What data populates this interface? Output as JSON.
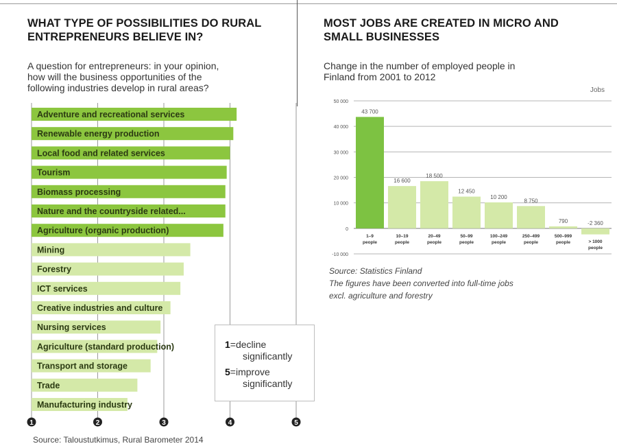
{
  "left": {
    "title_line1": "WHAT TYPE OF POSSIBILITIES DO RURAL",
    "title_line2": "ENTREPRENEURS BELIEVE IN?",
    "subtitle_line1": "A question for entrepreneurs: in your opinion,",
    "subtitle_line2": "how will the business opportunities of the",
    "subtitle_line3": "following industries develop in rural areas?",
    "legend": {
      "low_key": "1",
      "low_text_a": "=decline",
      "low_text_b": "significantly",
      "high_key": "5",
      "high_text_a": "=improve",
      "high_text_b": "significantly"
    },
    "source": "Source: Taloustutkimus, Rural Barometer 2014"
  },
  "right": {
    "title_line1": "MOST JOBS ARE CREATED IN MICRO AND",
    "title_line2": "SMALL BUSINESSES",
    "subtitle_line1": "Change in the number of employed people in",
    "subtitle_line2": "Finland from 2001 to 2012",
    "units": "Jobs",
    "source_line1": "Source: Statistics Finland",
    "source_line2": "The figures have been converted into full-time jobs",
    "source_line3": "excl. agriculture and forestry"
  },
  "chart_data": [
    {
      "type": "bar",
      "orientation": "horizontal",
      "categories": [
        "Adventure and recreational services",
        "Renewable energy production",
        "Local food and related services",
        "Tourism",
        "Biomass processing",
        "Nature and the countryside related...",
        "Agriculture (organic production)",
        "Mining",
        "Forestry",
        "ICT services",
        "Creative industries and culture",
        "Nursing services",
        "Agriculture (standard production)",
        "Transport and storage",
        "Trade",
        "Manufacturing industry"
      ],
      "values": [
        4.1,
        4.05,
        4.0,
        3.95,
        3.93,
        3.93,
        3.9,
        3.4,
        3.3,
        3.25,
        3.1,
        2.95,
        2.9,
        2.8,
        2.6,
        2.45
      ],
      "highlight_count": 7,
      "xticks": [
        "1",
        "2",
        "3",
        "4",
        "5"
      ],
      "xlim": [
        1,
        5
      ],
      "colors": {
        "dark": "#8cc63f",
        "light": "#d4e9a8",
        "text": "#2b3a12"
      }
    },
    {
      "type": "bar",
      "categories": [
        "1–9 people",
        "10–19 people",
        "20–49 people",
        "50–99 people",
        "100–249 people",
        "250–499 people",
        "500–999 people",
        "> 1000 people"
      ],
      "category_lines": [
        [
          "1–9",
          "people"
        ],
        [
          "10–19",
          "people"
        ],
        [
          "20–49",
          "people"
        ],
        [
          "50–99",
          "people"
        ],
        [
          "100–249",
          "people"
        ],
        [
          "250–499",
          "people"
        ],
        [
          "500–999",
          "people"
        ],
        [
          "> 1000",
          "people"
        ]
      ],
      "values": [
        43700,
        16600,
        18500,
        12450,
        10200,
        8750,
        790,
        -2360
      ],
      "value_labels": [
        "43 700",
        "16 600",
        "18 500",
        "12 450",
        "10 200",
        "8 750",
        "790",
        "-2 360"
      ],
      "ylim": [
        -10000,
        50000
      ],
      "yticks": [
        -10000,
        0,
        10000,
        20000,
        30000,
        40000,
        50000
      ],
      "ytick_labels": [
        "-10 000",
        "0",
        "10 000",
        "20 000",
        "30 000",
        "40 000",
        "50 000"
      ],
      "ylabel": "Jobs",
      "colors": {
        "dark": "#7dc242",
        "light": "#d4e9a8"
      }
    }
  ]
}
